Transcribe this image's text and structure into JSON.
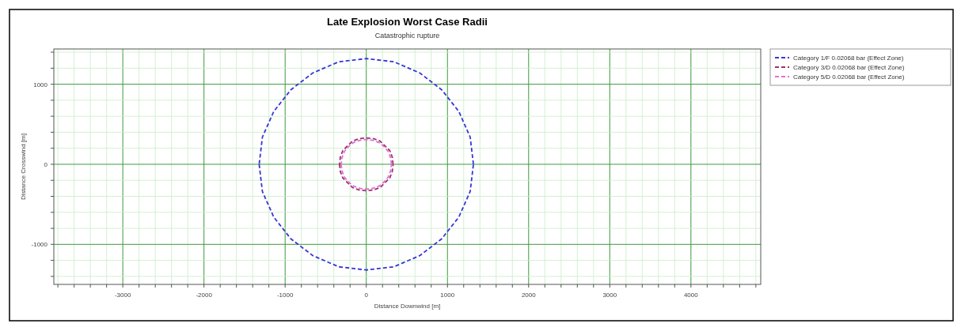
{
  "chart_data": {
    "type": "line",
    "title": "Late Explosion Worst Case Radii",
    "subtitle": "Catastrophic rupture",
    "xlabel": "Distance Downwind [m]",
    "ylabel": "Distance Crosswind [m]",
    "xlim": [
      -3850,
      4860
    ],
    "ylim": [
      -1500,
      1440
    ],
    "xticks": [
      {
        "value": -3800,
        "label": null
      },
      {
        "value": -3600,
        "label": null
      },
      {
        "value": -3400,
        "label": null
      },
      {
        "value": -3200,
        "label": null
      },
      -3000,
      {
        "value": -2800,
        "label": null
      },
      {
        "value": -2600,
        "label": null
      },
      {
        "value": -2400,
        "label": null
      },
      {
        "value": -2200,
        "label": null
      },
      -2000,
      {
        "value": -1800,
        "label": null
      },
      {
        "value": -1600,
        "label": null
      },
      {
        "value": -1400,
        "label": null
      },
      {
        "value": -1200,
        "label": null
      },
      -1000,
      {
        "value": -800,
        "label": null
      },
      {
        "value": -600,
        "label": null
      },
      {
        "value": -400,
        "label": null
      },
      {
        "value": -200,
        "label": null
      },
      0,
      {
        "value": 200,
        "label": null
      },
      {
        "value": 400,
        "label": null
      },
      {
        "value": 600,
        "label": null
      },
      {
        "value": 800,
        "label": null
      },
      1000,
      {
        "value": 1200,
        "label": null
      },
      {
        "value": 1400,
        "label": null
      },
      {
        "value": 1600,
        "label": null
      },
      {
        "value": 1800,
        "label": null
      },
      2000,
      {
        "value": 2200,
        "label": null
      },
      {
        "value": 2400,
        "label": null
      },
      {
        "value": 2600,
        "label": null
      },
      {
        "value": 2800,
        "label": null
      },
      3000,
      {
        "value": 3200,
        "label": null
      },
      {
        "value": 3400,
        "label": null
      },
      {
        "value": 3600,
        "label": null
      },
      {
        "value": 3800,
        "label": null
      },
      4000,
      {
        "value": 4200,
        "label": null
      },
      {
        "value": 4400,
        "label": null
      },
      {
        "value": 4600,
        "label": null
      },
      {
        "value": 4800,
        "label": null
      }
    ],
    "yticks": [
      {
        "value": -1400,
        "label": null
      },
      {
        "value": -1200,
        "label": null
      },
      -1000,
      {
        "value": -800,
        "label": null
      },
      {
        "value": -600,
        "label": null
      },
      {
        "value": -400,
        "label": null
      },
      {
        "value": -200,
        "label": null
      },
      0,
      {
        "value": 200,
        "label": null
      },
      {
        "value": 400,
        "label": null
      },
      {
        "value": 600,
        "label": null
      },
      {
        "value": 800,
        "label": null
      },
      1000,
      {
        "value": 1200,
        "label": null
      },
      {
        "value": 1400,
        "label": null
      }
    ],
    "grid": true,
    "legend": "top right",
    "line_style": "dashed",
    "marker": "none",
    "series": [
      {
        "name": "Category 1/F 0.02068 bar (Effect Zone)",
        "color": "#3636d6",
        "x": [
          1320,
          1280,
          1140,
          930,
          660,
          340,
          0,
          -340,
          -660,
          -930,
          -1140,
          -1280,
          -1320,
          -1280,
          -1140,
          -930,
          -660,
          -340,
          0,
          340,
          660,
          930,
          1140,
          1280
        ],
        "values": [
          0,
          340,
          660,
          930,
          1140,
          1280,
          1320,
          1280,
          1140,
          930,
          660,
          340,
          0,
          -340,
          -660,
          -930,
          -1140,
          -1280,
          -1320,
          -1280,
          -1140,
          -930,
          -660,
          -340
        ]
      },
      {
        "name": "Category 3/D 0.02068 bar (Effect Zone)",
        "color": "#a0306a",
        "x": [
          330,
          320,
          290,
          230,
          170,
          90,
          0,
          -90,
          -170,
          -230,
          -290,
          -320,
          -330,
          -320,
          -290,
          -230,
          -170,
          -90,
          0,
          90,
          170,
          230,
          290,
          320
        ],
        "values": [
          0,
          90,
          170,
          230,
          290,
          320,
          330,
          320,
          290,
          230,
          170,
          90,
          0,
          -90,
          -170,
          -230,
          -290,
          -320,
          -330,
          -320,
          -290,
          -230,
          -170,
          -90
        ]
      },
      {
        "name": "Category 5/D 0.02068 bar (Effect Zone)",
        "color": "#e070d8",
        "x": [
          310,
          300,
          270,
          220,
          160,
          80,
          0,
          -80,
          -160,
          -220,
          -270,
          -300,
          -310,
          -300,
          -270,
          -220,
          -160,
          -80,
          0,
          80,
          160,
          220,
          270,
          300
        ],
        "values": [
          0,
          80,
          160,
          220,
          270,
          300,
          310,
          300,
          270,
          220,
          160,
          80,
          0,
          -80,
          -160,
          -220,
          -270,
          -300,
          -310,
          -300,
          -270,
          -220,
          -160,
          -80
        ]
      }
    ]
  }
}
